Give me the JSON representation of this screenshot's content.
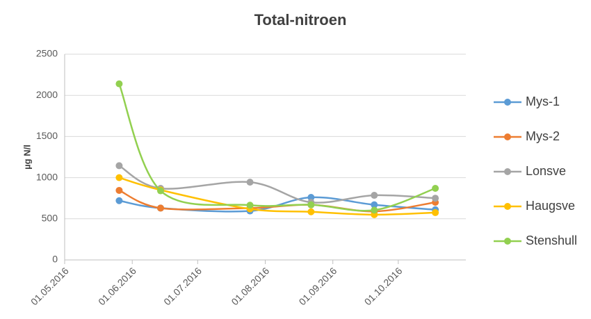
{
  "chart_data": {
    "type": "line",
    "title": "Total-nitroen",
    "y_label": "µg N/l",
    "x": [
      "2016-05-26",
      "2016-06-14",
      "2016-07-25",
      "2016-08-22",
      "2016-09-20",
      "2016-10-18"
    ],
    "xlim": [
      "2016-05-01",
      "2016-11-01"
    ],
    "xticks": [
      {
        "value": "2016-05-01",
        "label": "01.05.2016"
      },
      {
        "value": "2016-06-01",
        "label": "01.06.2016"
      },
      {
        "value": "2016-07-01",
        "label": "01.07.2016"
      },
      {
        "value": "2016-08-01",
        "label": "01.08.2016"
      },
      {
        "value": "2016-09-01",
        "label": "01.09.2016"
      },
      {
        "value": "2016-10-01",
        "label": "01.10.2016"
      }
    ],
    "ylim": [
      0,
      2500
    ],
    "yticks": [
      0,
      500,
      1000,
      1500,
      2000,
      2500
    ],
    "grid": true,
    "smooth": true,
    "legend": "right",
    "series": [
      {
        "name": "Mys-1",
        "color": "#5b9bd5",
        "values": [
          720,
          630,
          595,
          760,
          670,
          610
        ]
      },
      {
        "name": "Mys-2",
        "color": "#ed7d31",
        "values": [
          845,
          630,
          630,
          670,
          590,
          700
        ]
      },
      {
        "name": "Lonsve",
        "color": "#a5a5a5",
        "values": [
          1145,
          870,
          945,
          700,
          785,
          750
        ]
      },
      {
        "name": "Haugsve",
        "color": "#ffc000",
        "values": [
          1000,
          850,
          620,
          585,
          550,
          575
        ]
      },
      {
        "name": "Stenshull",
        "color": "#92d050",
        "values": [
          2140,
          840,
          665,
          670,
          605,
          870
        ]
      }
    ]
  }
}
